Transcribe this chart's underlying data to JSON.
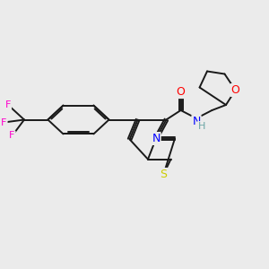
{
  "background_color": "#ebebeb",
  "bond_color": "#1a1a1a",
  "atom_colors": {
    "N": "#0000ff",
    "S": "#cccc00",
    "O": "#ff0000",
    "F": "#ff00cc",
    "H": "#6aa5a5",
    "C": "#1a1a1a"
  },
  "figsize": [
    3.0,
    3.0
  ],
  "dpi": 100
}
